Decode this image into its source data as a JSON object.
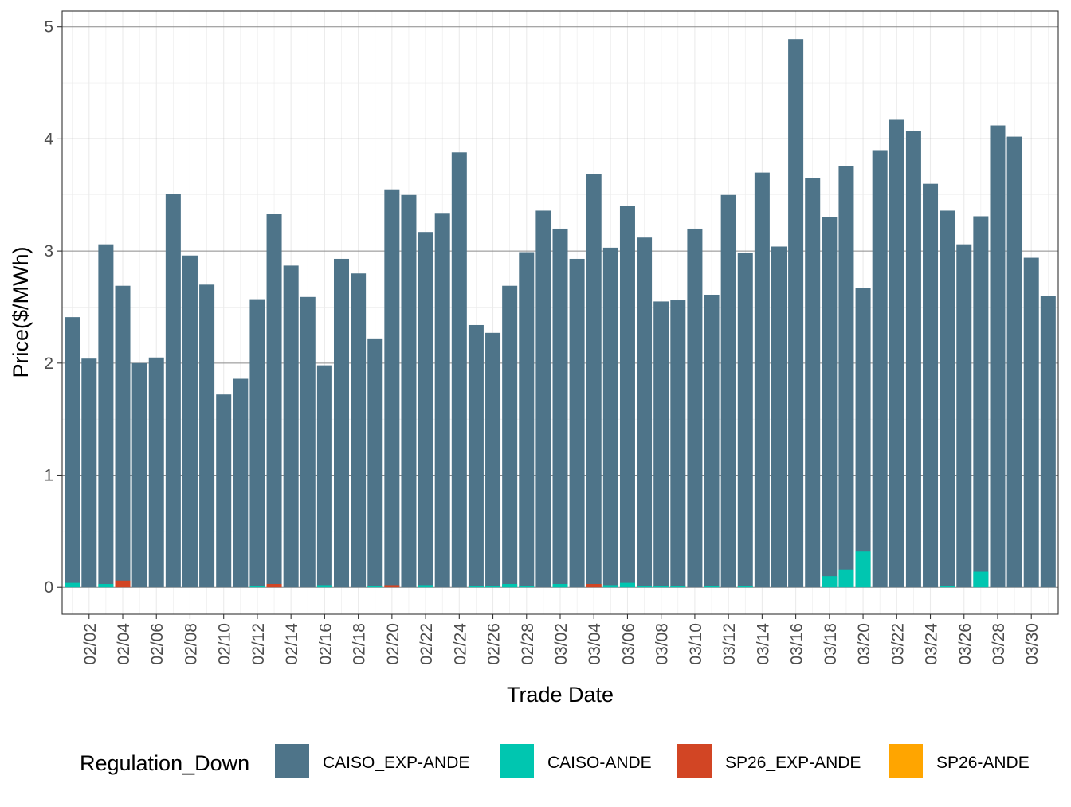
{
  "chart_data": {
    "type": "bar",
    "stacked": false,
    "xlabel": "Trade Date",
    "ylabel": "Price($/MWh)",
    "ylim": [
      -0.24,
      5.14
    ],
    "yticks": [
      0,
      1,
      2,
      3,
      4,
      5
    ],
    "grid": true,
    "legend_position": "bottom",
    "legend_title": "Regulation_Down",
    "x_tick_labels": [
      "02/02",
      "02/04",
      "02/06",
      "02/08",
      "02/10",
      "02/12",
      "02/14",
      "02/16",
      "02/18",
      "02/20",
      "02/22",
      "02/24",
      "02/26",
      "02/28",
      "03/02",
      "03/04",
      "03/06",
      "03/08",
      "03/10",
      "03/12",
      "03/14",
      "03/16",
      "03/18",
      "03/20",
      "03/22",
      "03/24",
      "03/26",
      "03/28",
      "03/30"
    ],
    "categories": [
      "02/01",
      "02/02",
      "02/03",
      "02/04",
      "02/05",
      "02/06",
      "02/07",
      "02/08",
      "02/09",
      "02/10",
      "02/11",
      "02/12",
      "02/13",
      "02/14",
      "02/15",
      "02/16",
      "02/17",
      "02/18",
      "02/19",
      "02/20",
      "02/21",
      "02/22",
      "02/23",
      "02/24",
      "02/25",
      "02/26",
      "02/27",
      "02/28",
      "03/01",
      "03/02",
      "03/03",
      "03/04",
      "03/05",
      "03/06",
      "03/07",
      "03/08",
      "03/09",
      "03/10",
      "03/11",
      "03/12",
      "03/13",
      "03/14",
      "03/15",
      "03/16",
      "03/17",
      "03/18",
      "03/19",
      "03/20",
      "03/21",
      "03/22",
      "03/23",
      "03/24",
      "03/25",
      "03/26",
      "03/27",
      "03/28",
      "03/29",
      "03/30",
      "03/31"
    ],
    "series": [
      {
        "name": "CAISO_EXP-ANDE",
        "color": "#4E7489",
        "values": [
          2.41,
          2.04,
          3.06,
          2.69,
          2.0,
          2.05,
          3.51,
          2.96,
          2.7,
          1.72,
          1.86,
          2.57,
          3.33,
          2.87,
          2.59,
          1.98,
          2.93,
          2.8,
          2.22,
          3.55,
          3.5,
          3.17,
          3.34,
          3.88,
          2.34,
          2.27,
          2.69,
          2.99,
          3.36,
          3.2,
          2.93,
          3.69,
          3.03,
          3.4,
          3.12,
          2.55,
          2.56,
          3.2,
          2.61,
          3.5,
          2.98,
          3.7,
          3.04,
          4.89,
          3.65,
          3.3,
          3.76,
          2.67,
          3.9,
          4.17,
          4.07,
          3.6,
          3.36,
          3.06,
          3.31,
          4.12,
          4.02,
          2.94,
          2.6
        ]
      },
      {
        "name": "CAISO-ANDE",
        "color": "#00C6B0",
        "values": [
          0.04,
          0,
          0.03,
          0,
          0,
          0,
          0,
          0,
          0,
          0,
          0,
          0.01,
          0,
          0,
          0,
          0.02,
          0,
          0,
          0.01,
          0,
          0,
          0.02,
          0,
          0,
          0.01,
          0.01,
          0.03,
          0.01,
          0,
          0.03,
          0,
          0,
          0.02,
          0.04,
          0.01,
          0.01,
          0.01,
          0,
          0.01,
          0,
          0.01,
          0,
          0,
          0,
          0,
          0.1,
          0.16,
          0.32,
          0,
          0,
          0,
          0,
          0.01,
          0,
          0.14,
          0,
          0,
          0,
          0
        ]
      },
      {
        "name": "SP26_EXP-ANDE",
        "color": "#D24524",
        "values": [
          0,
          0,
          0,
          0.06,
          0,
          0,
          0,
          0,
          0,
          0,
          0,
          0,
          0.03,
          0,
          0,
          0,
          0,
          0,
          0,
          0.02,
          0,
          0,
          0,
          0,
          0,
          0,
          0,
          0,
          0,
          0,
          0,
          0.03,
          0,
          0,
          0,
          0,
          0,
          0,
          0,
          0,
          0,
          0,
          0,
          0,
          0,
          0,
          0,
          0,
          0,
          0,
          0,
          0,
          0,
          0,
          0,
          0,
          0,
          0,
          0
        ]
      },
      {
        "name": "SP26-ANDE",
        "color": "#FFA500",
        "values": [
          0,
          0,
          0,
          0,
          0,
          0,
          0,
          0,
          0,
          0,
          0,
          0,
          0,
          0,
          0,
          0,
          0,
          0,
          0,
          0,
          0,
          0,
          0,
          0,
          0,
          0,
          0,
          0,
          0,
          0,
          0,
          0,
          0,
          0,
          0,
          0,
          0,
          0,
          0,
          0,
          0,
          0,
          0,
          0,
          0,
          0,
          0,
          0,
          0,
          0,
          0,
          0,
          0,
          0,
          0,
          0,
          0,
          0,
          0
        ]
      }
    ]
  }
}
